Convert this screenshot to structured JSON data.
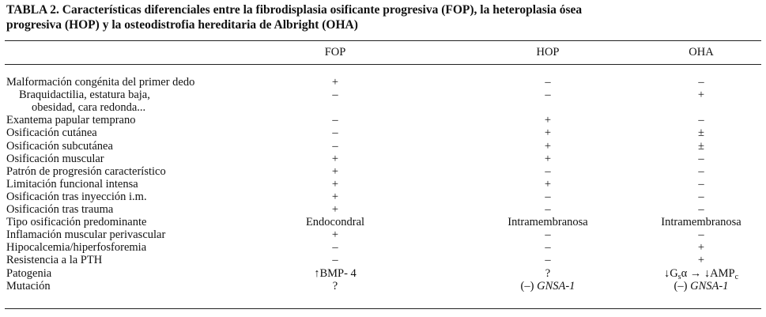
{
  "title": [
    "TABLA 2. Características diferenciales entre la fibrodisplasia osificante progresiva (FOP), la heteroplasia ósea",
    "progresiva (HOP) y la osteodistrofia hereditaria de Albright (OHA)"
  ],
  "table": {
    "columns": [
      "FOP",
      "HOP",
      "OHA"
    ],
    "rows": [
      {
        "label": [
          "Malformación congénita del primer dedo"
        ],
        "cells": [
          "+",
          "–",
          "–"
        ]
      },
      {
        "label": [
          "Braquidactilia, estatura baja,",
          "obesidad, cara redonda..."
        ],
        "cells": [
          "–",
          "–",
          "+"
        ]
      },
      {
        "label": [
          "Exantema papular temprano"
        ],
        "cells": [
          "–",
          "+",
          "–"
        ]
      },
      {
        "label": [
          "Osificación cutánea"
        ],
        "cells": [
          "–",
          "+",
          "±"
        ]
      },
      {
        "label": [
          "Osificación subcutánea"
        ],
        "cells": [
          "–",
          "+",
          "±"
        ]
      },
      {
        "label": [
          "Osificación muscular"
        ],
        "cells": [
          "+",
          "+",
          "–"
        ]
      },
      {
        "label": [
          "Patrón de progresión característico"
        ],
        "cells": [
          "+",
          "–",
          "–"
        ]
      },
      {
        "label": [
          "Limitación funcional intensa"
        ],
        "cells": [
          "+",
          "+",
          "–"
        ]
      },
      {
        "label": [
          "Osificación tras inyección i.m."
        ],
        "cells": [
          "+",
          "–",
          "–"
        ]
      },
      {
        "label": [
          "Osificación tras trauma"
        ],
        "cells": [
          "+",
          "–",
          "–"
        ]
      },
      {
        "label": [
          "Tipo osificación predominante"
        ],
        "cells": [
          "Endocondral",
          "Intramembranosa",
          "Intramembranosa"
        ]
      },
      {
        "label": [
          "Inflamación muscular perivascular"
        ],
        "cells": [
          "+",
          "–",
          "–"
        ]
      },
      {
        "label": [
          "Hipocalcemia/hiperfosforemia"
        ],
        "cells": [
          "–",
          "–",
          "+"
        ]
      },
      {
        "label": [
          "Resistencia a la PTH"
        ],
        "cells": [
          "–",
          "–",
          "+"
        ]
      },
      {
        "label": [
          "Patogenia"
        ],
        "cells": [
          "↑BMP- 4",
          "?",
          [
            {
              "text": "↓G"
            },
            {
              "text": "s",
              "sub": true
            },
            {
              "text": "α → ↓AMP"
            },
            {
              "text": "c",
              "sub": true
            }
          ]
        ]
      },
      {
        "label": [
          "Mutación"
        ],
        "cells": [
          "?",
          [
            {
              "text": "(–) "
            },
            {
              "text": "GNSA-1",
              "italic": true
            }
          ],
          [
            {
              "text": "(–) "
            },
            {
              "text": "GNSA-1",
              "italic": true
            }
          ]
        ]
      }
    ]
  }
}
